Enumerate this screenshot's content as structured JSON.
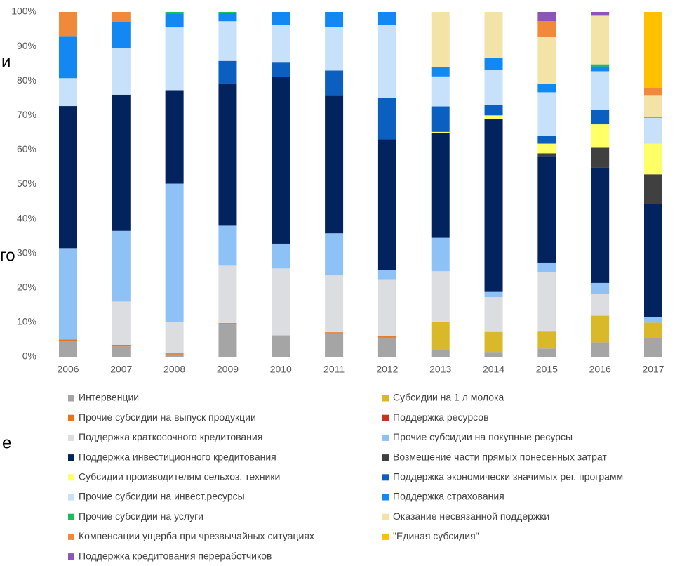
{
  "background_fragments": [
    "и",
    "го",
    "е"
  ],
  "chart_data": {
    "type": "stacked_bar_percent",
    "categories": [
      "2006",
      "2007",
      "2008",
      "2009",
      "2010",
      "2011",
      "2012",
      "2013",
      "2014",
      "2015",
      "2016",
      "2017"
    ],
    "ylim": [
      0,
      100
    ],
    "yticks": [
      {
        "value": 0,
        "label": "0%"
      },
      {
        "value": 10,
        "label": "10%"
      },
      {
        "value": 20,
        "label": "20%"
      },
      {
        "value": 30,
        "label": "30%"
      },
      {
        "value": 40,
        "label": "40%"
      },
      {
        "value": 50,
        "label": "50%"
      },
      {
        "value": 60,
        "label": "60%"
      },
      {
        "value": 70,
        "label": "70%"
      },
      {
        "value": 80,
        "label": "80%"
      },
      {
        "value": 90,
        "label": "90%"
      },
      {
        "value": 100,
        "label": "100%"
      }
    ],
    "grid": false,
    "series": [
      {
        "name": "Интервенции",
        "color": "#a5a5a5",
        "values": [
          4.5,
          3,
          0.7,
          9.6,
          6.2,
          6.8,
          5.6,
          2,
          1.4,
          2.4,
          4.2,
          5.3
        ]
      },
      {
        "name": "Субсидии на 1 л молока",
        "color": "#d9b82a",
        "values": [
          0,
          0,
          0,
          0,
          0,
          0,
          0,
          8.2,
          5.8,
          4.9,
          7.7,
          4.6
        ]
      },
      {
        "name": "Прочие субсидии на выпуск продукции",
        "color": "#e8731f",
        "values": [
          0.5,
          0.4,
          0.3,
          0.2,
          0,
          0.3,
          0.3,
          0,
          0,
          0,
          0,
          0
        ]
      },
      {
        "name": "Поддержка ресурсов",
        "color": "#c8321e",
        "values": [
          0,
          0,
          0,
          0,
          0,
          0,
          0,
          0,
          0,
          0,
          0,
          0
        ]
      },
      {
        "name": "Поддержка краткосочного кредитования",
        "color": "#dcdde0",
        "values": [
          0,
          12.6,
          9,
          16.6,
          19.4,
          16.5,
          16.4,
          14.6,
          10.1,
          17.3,
          6.3,
          0
        ]
      },
      {
        "name": "Прочие субсидии на покупные ресурсы",
        "color": "#8ec2f6",
        "values": [
          26.5,
          20.5,
          40.2,
          11.6,
          7.2,
          12.2,
          2.8,
          9.7,
          1.5,
          2.7,
          3.2,
          1.6
        ]
      },
      {
        "name": "Поддержка инвестиционного кредитования",
        "color": "#03235e",
        "values": [
          41.2,
          39.5,
          27.1,
          41.3,
          48.4,
          40.1,
          38,
          30.3,
          50.2,
          30.9,
          33.4,
          32.8
        ]
      },
      {
        "name": "Возмещение части прямых понесенных затрат",
        "color": "#404040",
        "values": [
          0,
          0,
          0,
          0,
          0,
          0,
          0,
          0,
          0,
          0.8,
          5.8,
          8.6
        ]
      },
      {
        "name": "Субсидии производителям сельхоз. техники",
        "color": "#ffff66",
        "values": [
          0,
          0,
          0,
          0,
          0,
          0,
          0,
          0.4,
          1,
          2.8,
          6.8,
          8.9
        ]
      },
      {
        "name": "Поддержка экономически значимых рег. программ",
        "color": "#0a5fc0",
        "values": [
          0,
          0,
          0,
          6.5,
          4.1,
          7.1,
          11.9,
          7.4,
          3,
          2.2,
          4.2,
          0
        ]
      },
      {
        "name": "Прочие субсидии на инвест.ресурсы",
        "color": "#c6e1f9",
        "values": [
          8.1,
          13.5,
          18.2,
          11.5,
          10.9,
          12.7,
          21.2,
          8.7,
          10.1,
          12.7,
          11.2,
          7.5
        ]
      },
      {
        "name": "Поддержка страхования",
        "color": "#1387f2",
        "values": [
          12.2,
          7.5,
          4,
          2.3,
          3.8,
          4.3,
          3.8,
          2.7,
          3.6,
          2.5,
          1.4,
          0
        ]
      },
      {
        "name": "Прочие субсидии на услуги",
        "color": "#14c05a",
        "values": [
          0,
          0,
          0.5,
          0.4,
          0,
          0,
          0,
          0,
          0,
          0,
          0.6,
          0.3
        ]
      },
      {
        "name": "Оказание несвязанной поддержки",
        "color": "#f3e3a7",
        "values": [
          0,
          0,
          0,
          0,
          0,
          0,
          0,
          16,
          13.3,
          13.6,
          14.1,
          6.3
        ]
      },
      {
        "name": "Компенсации ущерба при чрезвычайных ситуациях",
        "color": "#f08a3a",
        "values": [
          7,
          3,
          0,
          0,
          0,
          0,
          0,
          0,
          0,
          4.5,
          0,
          2.1
        ]
      },
      {
        "name": "\"Единая субсидия\"",
        "color": "#ffc000",
        "values": [
          0,
          0,
          0,
          0,
          0,
          0,
          0,
          0,
          0,
          0,
          0,
          22
        ]
      },
      {
        "name": "Поддержка кредитования переработчиков",
        "color": "#8e55b9",
        "values": [
          0,
          0,
          0,
          0,
          0,
          0,
          0,
          0,
          0,
          2.7,
          1.1,
          0
        ]
      }
    ]
  }
}
